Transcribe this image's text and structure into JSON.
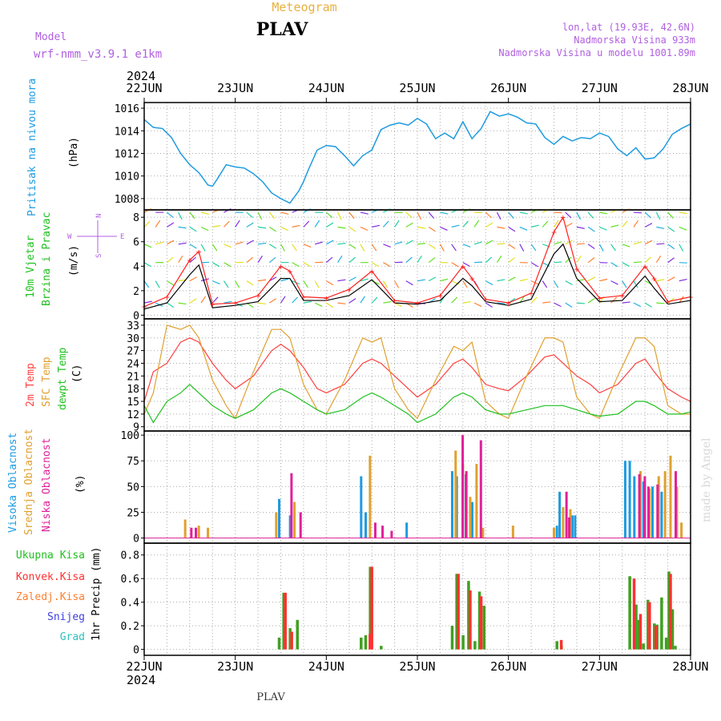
{
  "header": {
    "product": "Meteogram",
    "station": "PLAV",
    "model_label": "Model",
    "model_name": "wrf-nmm_v3.9.1 e1km",
    "coords": "lon,lat (19.93E, 42.6N)",
    "altitude": "Nadmorska Visina 933m",
    "model_altitude": "Nadmorska Visina u modelu 1001.89m",
    "year_top": "2024",
    "year_bottom": "2024",
    "footer_station": "PLAV",
    "credit": "made by Angel"
  },
  "colors": {
    "pressure": "#1e9be0",
    "wind_speed": "#000000",
    "gust": "#ff2020",
    "temp2m": "#ff4040",
    "sfc_temp": "#e0a030",
    "dewpoint": "#20c020",
    "high_cloud": "#1e9be0",
    "mid_cloud": "#e0a030",
    "low_cloud": "#e0209a",
    "total_precip": "#40a020",
    "conv_precip": "#ff3030",
    "frz_precip": "#ff8030",
    "snow": "#4040e0",
    "hail": "#30c0c0",
    "title_purple": "#b060e0",
    "title_orange": "#e8b040"
  },
  "chart_data": [
    {
      "type": "line",
      "panel": "pressure",
      "ylabel_side": "Pritisak na nivou mora",
      "ylabel": "(hPa)",
      "ylim": [
        1007,
        1016.5
      ],
      "yticks": [
        1008,
        1010,
        1012,
        1014,
        1016
      ],
      "x_days": [
        "22JUN",
        "23JUN",
        "24JUN",
        "25JUN",
        "26JUN",
        "27JUN",
        "28JUN"
      ],
      "grid": true,
      "series": [
        {
          "x": [
            0,
            0.1,
            0.2,
            0.3,
            0.4,
            0.5,
            0.6,
            0.7,
            0.75,
            0.8,
            0.9,
            1.0,
            1.1,
            1.2,
            1.3,
            1.4,
            1.5,
            1.6,
            1.7,
            1.75,
            1.8,
            1.9,
            2.0,
            2.1,
            2.2,
            2.3,
            2.4,
            2.5,
            2.6,
            2.7,
            2.8,
            2.9,
            3.0,
            3.1,
            3.2,
            3.3,
            3.4,
            3.5,
            3.6,
            3.7,
            3.8,
            3.9,
            4.0,
            4.1,
            4.2,
            4.3,
            4.4,
            4.5,
            4.6,
            4.7,
            4.8,
            4.9,
            5.0,
            5.1,
            5.2,
            5.3,
            5.4,
            5.5,
            5.6,
            5.7,
            5.8,
            5.9,
            6.0
          ],
          "values": [
            1015,
            1014.3,
            1014.2,
            1013.4,
            1012,
            1011,
            1010.3,
            1009.2,
            1009.1,
            1009.7,
            1011,
            1010.8,
            1010.7,
            1010.2,
            1009.5,
            1008.5,
            1008,
            1007.6,
            1008.7,
            1009.5,
            1010.5,
            1012.3,
            1012.7,
            1012.6,
            1011.8,
            1010.9,
            1011.8,
            1012.3,
            1014.1,
            1014.5,
            1014.7,
            1014.5,
            1015.1,
            1014.6,
            1013.3,
            1013.8,
            1013.3,
            1014.8,
            1013.3,
            1014.2,
            1015.7,
            1015.3,
            1015.5,
            1015.2,
            1014.7,
            1014.6,
            1013.4,
            1012.8,
            1013.5,
            1013.1,
            1013.4,
            1013.3,
            1013.8,
            1013.5,
            1012.4,
            1011.8,
            1012.5,
            1011.5,
            1011.6,
            1012.4,
            1013.7,
            1014.2,
            1014.6
          ]
        }
      ]
    },
    {
      "type": "line",
      "panel": "wind",
      "ylabel_side": [
        "10m Vjetar",
        "Brzina i Pravac"
      ],
      "ylabel": "(m/s)",
      "compass": {
        "n": "N",
        "s": "S",
        "w": "W",
        "e": "E"
      },
      "ylim": [
        -0.3,
        8.6
      ],
      "yticks": [
        0,
        2,
        4,
        6,
        8
      ],
      "grid": true,
      "series": [
        {
          "name": "speed",
          "x": [
            0,
            0.25,
            0.5,
            0.6,
            0.75,
            1.0,
            1.25,
            1.5,
            1.6,
            1.75,
            2.0,
            2.25,
            2.5,
            2.75,
            3.0,
            3.25,
            3.5,
            3.6,
            3.75,
            4.0,
            4.25,
            4.5,
            4.6,
            4.75,
            5.0,
            5.25,
            5.5,
            5.6,
            5.75,
            6.0
          ],
          "values": [
            0.5,
            1.0,
            3.3,
            4.1,
            0.6,
            0.8,
            1.1,
            3.0,
            3.0,
            1.2,
            1.2,
            1.6,
            2.9,
            1.0,
            0.9,
            1.2,
            3.0,
            2.4,
            1.1,
            0.8,
            1.3,
            5.0,
            5.8,
            3.0,
            1.1,
            1.2,
            3.2,
            2.2,
            0.9,
            1.2
          ]
        },
        {
          "name": "gust",
          "x": [
            0,
            0.25,
            0.5,
            0.6,
            0.75,
            1.0,
            1.25,
            1.5,
            1.6,
            1.75,
            2.0,
            2.25,
            2.5,
            2.75,
            3.0,
            3.25,
            3.5,
            3.6,
            3.75,
            4.0,
            4.25,
            4.5,
            4.6,
            4.75,
            5.0,
            5.25,
            5.5,
            5.6,
            5.75,
            6.0
          ],
          "values": [
            0.7,
            1.5,
            4.5,
            5.2,
            0.9,
            1.0,
            1.6,
            4.0,
            3.6,
            1.5,
            1.4,
            2.1,
            3.6,
            1.2,
            1.0,
            1.6,
            4.0,
            3.0,
            1.3,
            1.0,
            1.8,
            6.8,
            8.0,
            3.8,
            1.4,
            1.6,
            4.0,
            3.0,
            1.1,
            1.5
          ]
        }
      ]
    },
    {
      "type": "line",
      "panel": "temperature",
      "ylabel_side": [
        "2m Temp",
        "SFC Temp",
        "dewpt Temp"
      ],
      "ylabel": "(C)",
      "ylim": [
        8,
        34.5
      ],
      "yticks": [
        9,
        12,
        15,
        18,
        21,
        24,
        27,
        30,
        33
      ],
      "grid": true,
      "series": [
        {
          "name": "2m Temp",
          "x": [
            0,
            0.1,
            0.25,
            0.4,
            0.5,
            0.6,
            0.75,
            0.9,
            1.0,
            1.2,
            1.4,
            1.5,
            1.6,
            1.75,
            1.9,
            2.0,
            2.2,
            2.4,
            2.5,
            2.6,
            2.75,
            2.9,
            3.0,
            3.2,
            3.4,
            3.5,
            3.6,
            3.75,
            3.9,
            4.0,
            4.2,
            4.4,
            4.5,
            4.6,
            4.75,
            4.9,
            5.0,
            5.2,
            5.4,
            5.5,
            5.6,
            5.75,
            5.9,
            6.0
          ],
          "values": [
            15,
            22,
            24,
            29,
            30,
            29,
            24,
            20,
            18,
            21,
            27,
            28.5,
            27,
            23,
            18,
            17,
            19,
            24,
            25,
            24,
            21,
            18,
            16,
            19,
            24,
            25,
            23,
            19,
            18,
            17.5,
            21,
            25.5,
            26,
            24,
            21,
            19,
            17,
            19,
            24,
            25,
            22,
            18,
            16,
            15
          ]
        },
        {
          "name": "SFC Temp",
          "x": [
            0,
            0.1,
            0.25,
            0.4,
            0.5,
            0.6,
            0.75,
            0.9,
            1.0,
            1.2,
            1.4,
            1.5,
            1.6,
            1.75,
            1.9,
            2.0,
            2.2,
            2.4,
            2.5,
            2.6,
            2.75,
            2.9,
            3.0,
            3.2,
            3.4,
            3.5,
            3.6,
            3.75,
            3.9,
            4.0,
            4.2,
            4.4,
            4.5,
            4.6,
            4.75,
            4.9,
            5.0,
            5.2,
            5.4,
            5.5,
            5.6,
            5.75,
            5.9,
            6.0
          ],
          "values": [
            12,
            17,
            33,
            32,
            33,
            30,
            20,
            14,
            11,
            22,
            32,
            32,
            30,
            19,
            13,
            12,
            20,
            30,
            29,
            30,
            18,
            13,
            11,
            20,
            28,
            27,
            29,
            15,
            12,
            11,
            21,
            30,
            30,
            29,
            16,
            12,
            11,
            21,
            30,
            30,
            28,
            14,
            12,
            12
          ]
        },
        {
          "name": "dewpt Temp",
          "x": [
            0,
            0.1,
            0.25,
            0.4,
            0.5,
            0.6,
            0.75,
            0.9,
            1.0,
            1.2,
            1.4,
            1.5,
            1.6,
            1.75,
            1.9,
            2.0,
            2.2,
            2.4,
            2.5,
            2.6,
            2.75,
            2.9,
            3.0,
            3.2,
            3.4,
            3.5,
            3.6,
            3.75,
            3.9,
            4.0,
            4.2,
            4.4,
            4.5,
            4.6,
            4.75,
            4.9,
            5.0,
            5.2,
            5.4,
            5.5,
            5.6,
            5.75,
            5.9,
            6.0
          ],
          "values": [
            14,
            10,
            15,
            17,
            19,
            17,
            14,
            12,
            11,
            13,
            17,
            18,
            17,
            15,
            13,
            12,
            13,
            16,
            17,
            16,
            14,
            12,
            10,
            12,
            16,
            17,
            16,
            13,
            12,
            12,
            13,
            14,
            14,
            14,
            13,
            12,
            11.5,
            12,
            15,
            15,
            14,
            12,
            12,
            12.5
          ]
        }
      ]
    },
    {
      "type": "bar",
      "panel": "clouds",
      "ylabel_side": [
        "Visoka Oblacnost",
        "Srednja Oblacnost",
        "Niska Oblacnost"
      ],
      "ylabel": "(%)",
      "ylim": [
        -5,
        104
      ],
      "yticks": [
        0,
        25,
        50,
        75,
        100
      ],
      "grid": true,
      "series": [
        {
          "name": "Visoka Oblacnost",
          "x": [
            1.5,
            1.62,
            2.4,
            2.45,
            2.9,
            3.4,
            3.45,
            3.55,
            3.62,
            4.55,
            4.58,
            4.72,
            4.75,
            5.3,
            5.35,
            5.4,
            5.5,
            5.6,
            5.7
          ],
          "values": [
            38,
            22,
            60,
            25,
            15,
            65,
            60,
            62,
            35,
            12,
            45,
            22,
            22,
            75,
            75,
            60,
            55,
            50,
            45
          ]
        },
        {
          "name": "Srednja Oblacnost",
          "x": [
            0.45,
            0.6,
            0.7,
            1.45,
            1.65,
            2.48,
            3.42,
            3.5,
            3.58,
            3.65,
            3.72,
            4.05,
            4.5,
            4.6,
            4.68,
            5.45,
            5.55,
            5.65,
            5.72,
            5.78,
            5.85,
            5.9
          ],
          "values": [
            18,
            12,
            10,
            25,
            35,
            80,
            85,
            72,
            40,
            72,
            10,
            12,
            10,
            30,
            28,
            65,
            48,
            60,
            65,
            80,
            50,
            15
          ]
        },
        {
          "name": "Niska Oblacnost",
          "x": [
            0.5,
            0.55,
            1.6,
            1.7,
            2.52,
            2.6,
            2.7,
            3.48,
            3.52,
            3.68,
            4.62,
            4.65,
            5.42,
            5.48,
            5.52,
            5.62,
            5.82
          ],
          "values": [
            10,
            10,
            63,
            25,
            15,
            12,
            7,
            100,
            65,
            95,
            45,
            20,
            62,
            60,
            50,
            52,
            65
          ]
        }
      ]
    },
    {
      "type": "bar",
      "panel": "precipitation",
      "ylabel_side": [
        "Ukupna Kisa",
        "Konvek.Kisa",
        "Zaledj.Kisa",
        "Snijeg",
        "Grad"
      ],
      "ylabel": "1hr Precip (mm)",
      "ylim": [
        -0.05,
        0.9
      ],
      "yticks": [
        0,
        0.2,
        0.4,
        0.6,
        0.8
      ],
      "grid": true,
      "series": [
        {
          "name": "Ukupna Kisa",
          "x": [
            1.5,
            1.55,
            1.62,
            1.7,
            2.4,
            2.45,
            2.5,
            2.62,
            3.4,
            3.45,
            3.52,
            3.58,
            3.65,
            3.7,
            3.75,
            4.55,
            4.6,
            5.35,
            5.42,
            5.45,
            5.5,
            5.55,
            5.62,
            5.65,
            5.7,
            5.75,
            5.78,
            5.82,
            5.85
          ],
          "values": [
            0.1,
            0.48,
            0.18,
            0.25,
            0.1,
            0.12,
            0.7,
            0.03,
            0.2,
            0.64,
            0.12,
            0.58,
            0.07,
            0.49,
            0.37,
            0.07,
            0.03,
            0.62,
            0.38,
            0.25,
            0.05,
            0.42,
            0.22,
            0.21,
            0.44,
            0.1,
            0.66,
            0.34,
            0.03
          ]
        },
        {
          "name": "Konvek.Kisa",
          "x": [
            1.55,
            1.62,
            2.48,
            2.5,
            3.45,
            3.58,
            3.7,
            4.58,
            5.38,
            5.45,
            5.55,
            5.62,
            5.78
          ],
          "values": [
            0.48,
            0.15,
            0.13,
            0.7,
            0.64,
            0.5,
            0.45,
            0.08,
            0.6,
            0.3,
            0.4,
            0.2,
            0.64
          ]
        }
      ]
    }
  ]
}
